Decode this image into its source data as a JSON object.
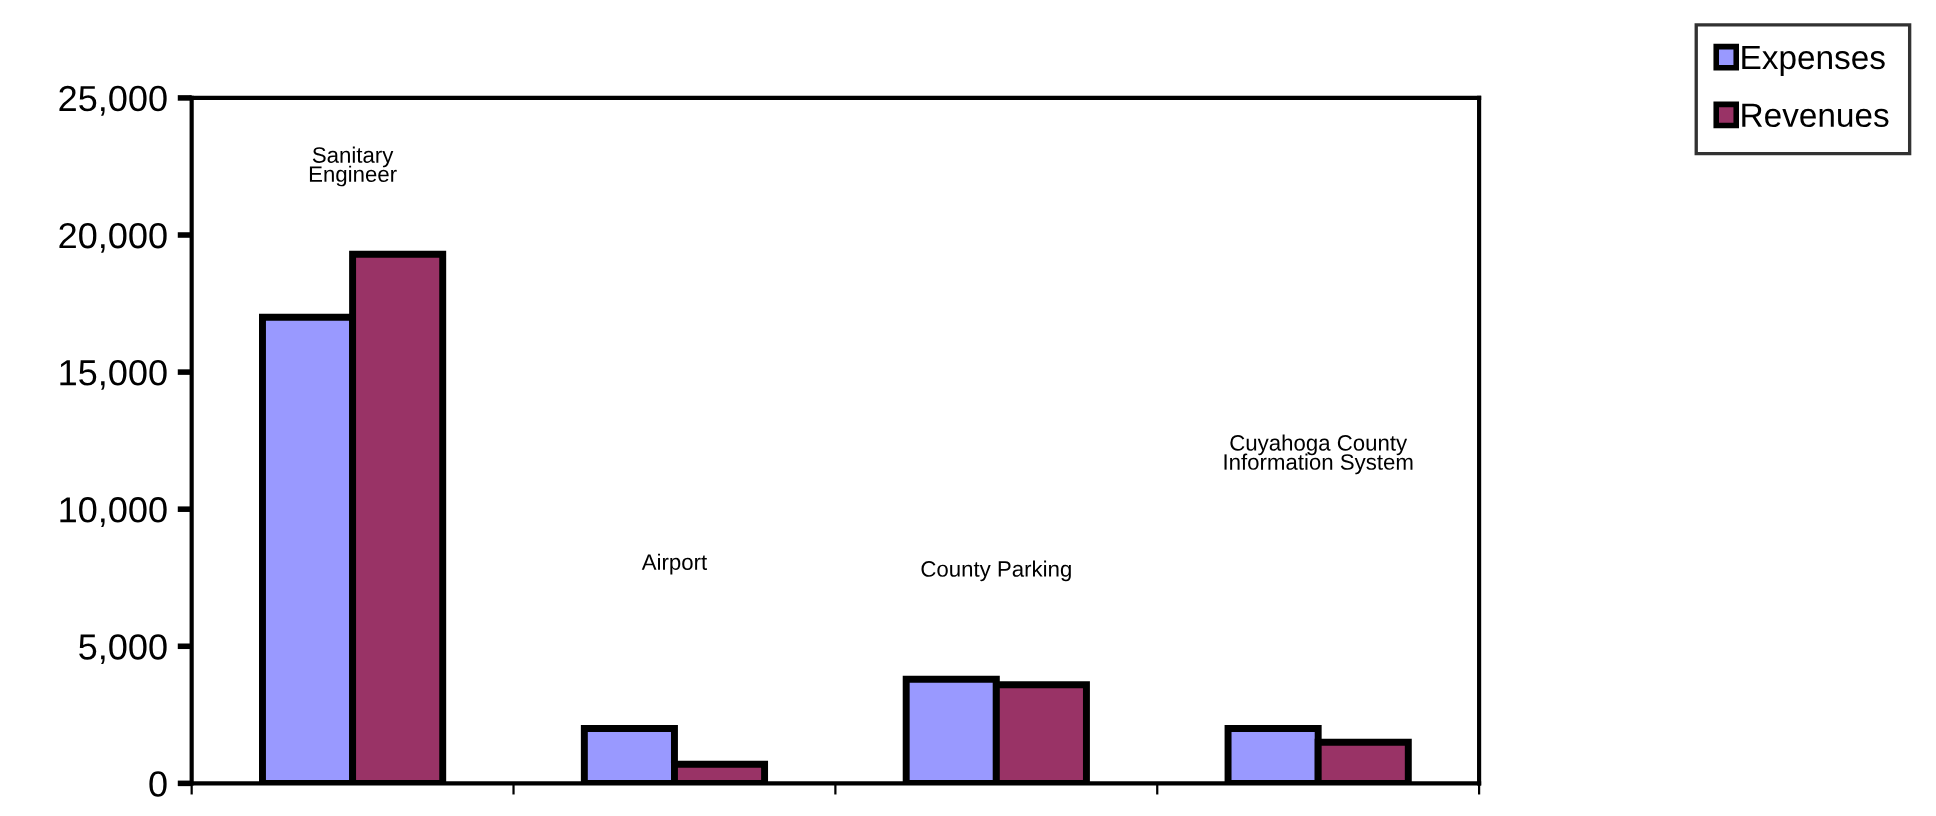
{
  "chart_data": {
    "type": "bar",
    "categories": [
      null,
      null,
      null,
      null
    ],
    "series": [
      {
        "name": "Expenses",
        "color": "#9999ff",
        "values": [
          17000,
          2000,
          3800,
          2000
        ]
      },
      {
        "name": "Revenues",
        "color": "#993366",
        "values": [
          19300,
          700,
          3600,
          1500
        ]
      }
    ],
    "ylim": [
      0,
      25000
    ],
    "yticks": [
      {
        "value": 0,
        "label": "0"
      },
      {
        "value": 5000,
        "label": "5,000"
      },
      {
        "value": 10000,
        "label": "10,000"
      },
      {
        "value": 15000,
        "label": "15,000"
      },
      {
        "value": 20000,
        "label": "20,000"
      },
      {
        "value": 25000,
        "label": "25,000"
      }
    ],
    "annotations": [
      "Sanitary\nEngineer",
      "Airport",
      "County Parking",
      "Cuyahoga County\nInformation System"
    ],
    "tick_labels": "y",
    "grid": false,
    "legend": "top right"
  }
}
